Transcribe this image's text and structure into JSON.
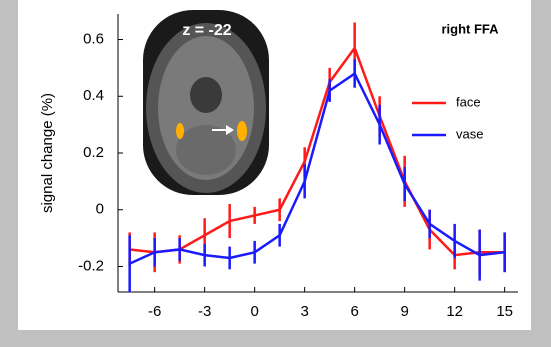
{
  "chart_data": {
    "type": "line",
    "ylabel": "signal change (%)",
    "annotations": [
      "right FFA",
      "z = -22"
    ],
    "x": [
      -7.5,
      -6,
      -4.5,
      -3,
      -1.5,
      0,
      1.5,
      3,
      4.5,
      6,
      7.5,
      9,
      10.5,
      12,
      13.5,
      15
    ],
    "series": [
      {
        "name": "face",
        "color": "#ff1a1a",
        "values": [
          -0.14,
          -0.15,
          -0.14,
          -0.09,
          -0.04,
          -0.02,
          0.0,
          0.17,
          0.45,
          0.57,
          0.33,
          0.1,
          -0.07,
          -0.16,
          -0.15,
          -0.15
        ],
        "errors": [
          0.06,
          0.07,
          0.05,
          0.06,
          0.06,
          0.03,
          0.04,
          0.05,
          0.05,
          0.09,
          0.07,
          0.09,
          0.07,
          0.05,
          0.08,
          0.07
        ]
      },
      {
        "name": "vase",
        "color": "#1a1aff",
        "values": [
          -0.19,
          -0.15,
          -0.14,
          -0.16,
          -0.17,
          -0.15,
          -0.09,
          0.1,
          0.42,
          0.48,
          0.3,
          0.09,
          -0.05,
          -0.11,
          -0.16,
          -0.15
        ],
        "errors": [
          0.1,
          0.05,
          0.04,
          0.04,
          0.04,
          0.04,
          0.04,
          0.06,
          0.04,
          0.05,
          0.07,
          0.06,
          0.05,
          0.06,
          0.09,
          0.07
        ]
      }
    ],
    "xlim": [
      -8.2,
      15.8
    ],
    "xticks": [
      -6,
      -3,
      0,
      3,
      6,
      9,
      12,
      15
    ],
    "ylim": [
      -0.29,
      0.69
    ],
    "yticks": [
      -0.2,
      0,
      0.2,
      0.4,
      0.6
    ]
  }
}
